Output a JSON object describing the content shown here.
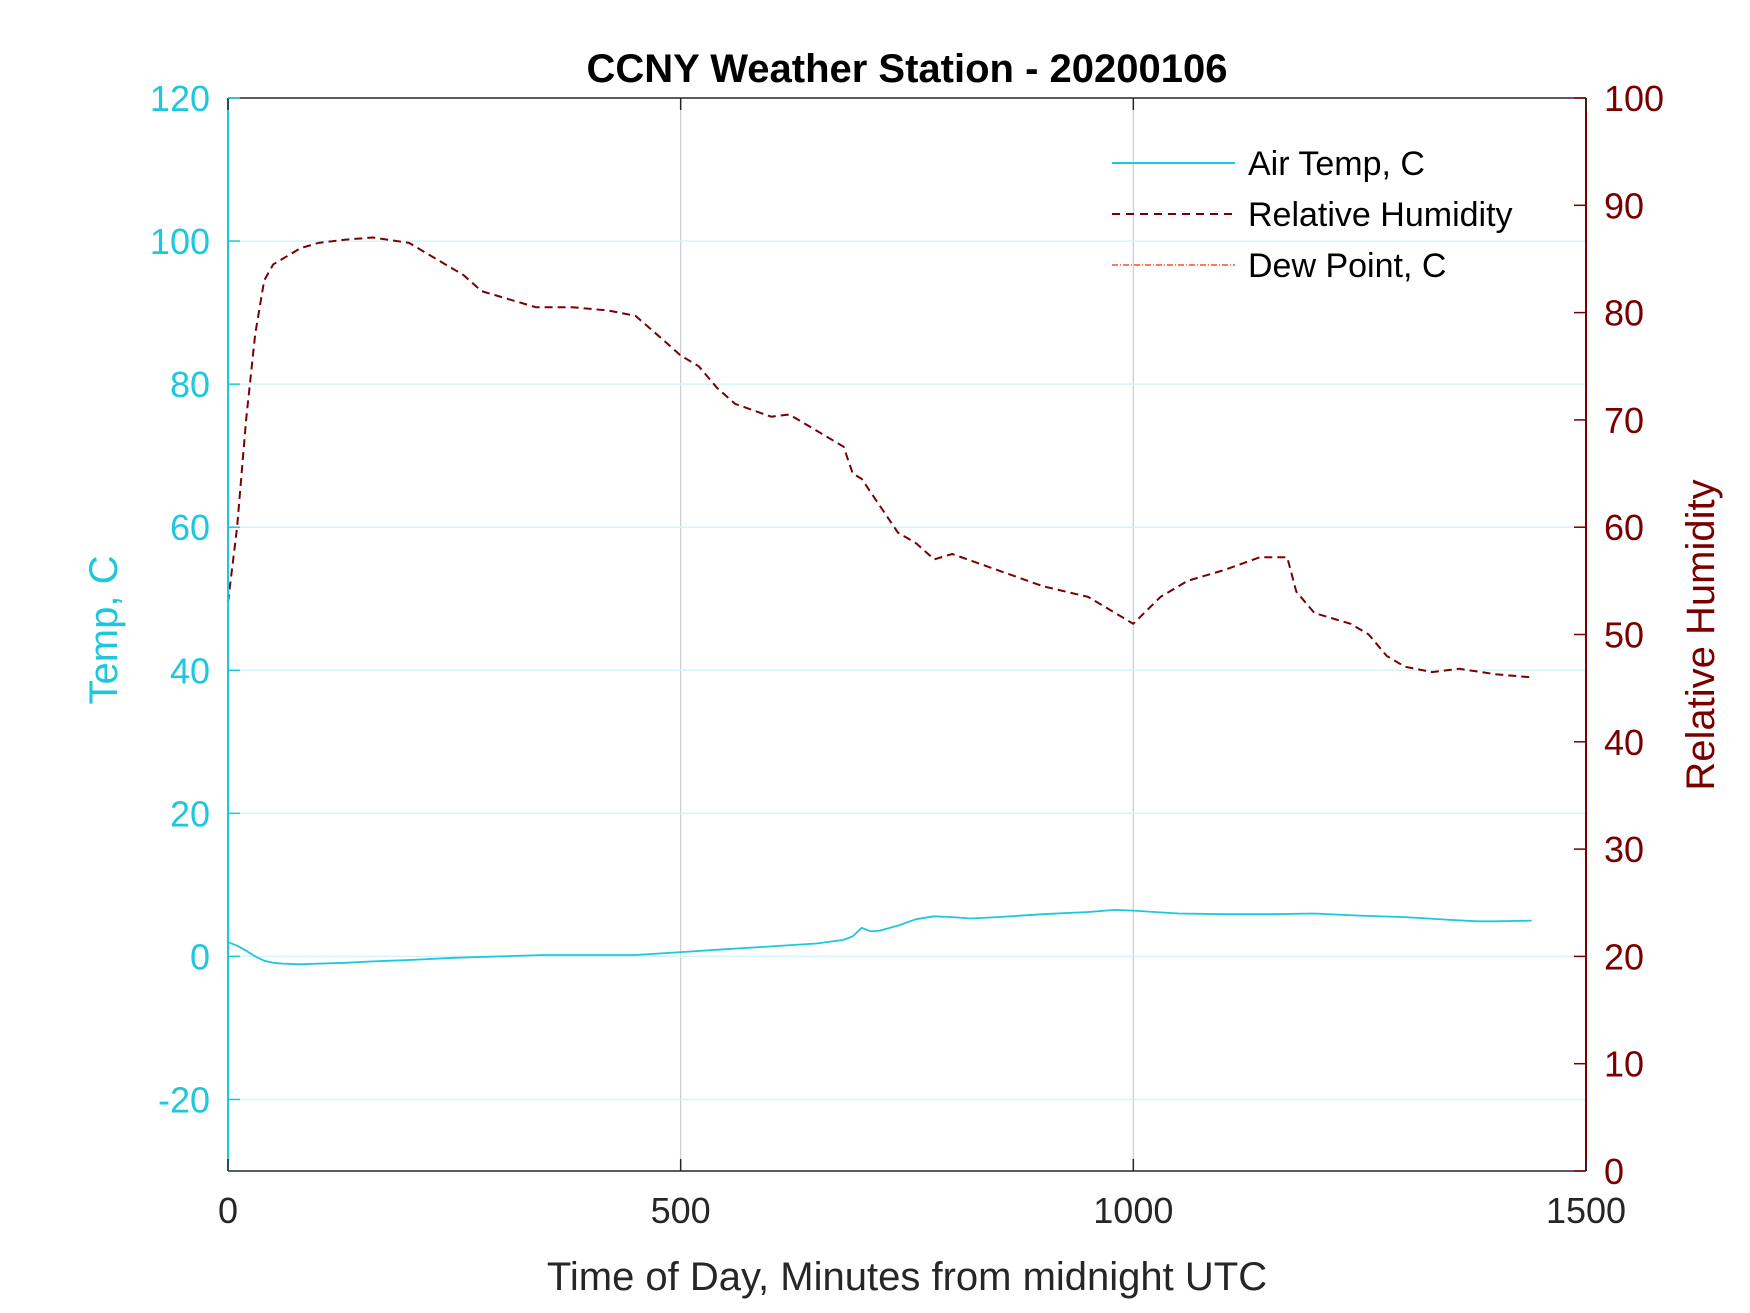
{
  "chart_data": {
    "type": "line",
    "title": "CCNY Weather Station - 20200106",
    "xlabel": "Time of Day, Minutes from midnight UTC",
    "ylabel_left": "Temp, C",
    "ylabel_right": "Relative Humidity",
    "xlim": [
      0,
      1500
    ],
    "ylim_left": [
      -30,
      120
    ],
    "ylim_right": [
      0,
      100
    ],
    "x_ticks": [
      0,
      500,
      1000,
      1500
    ],
    "x_tick_labels": [
      "0",
      "500",
      "1000",
      "1500"
    ],
    "y_left_ticks": [
      -20,
      0,
      20,
      40,
      60,
      80,
      100,
      120
    ],
    "y_left_tick_labels": [
      "-20",
      "0",
      "20",
      "40",
      "60",
      "80",
      "100",
      "120"
    ],
    "y_right_ticks": [
      0,
      10,
      20,
      30,
      40,
      50,
      60,
      70,
      80,
      90,
      100
    ],
    "y_right_tick_labels": [
      "0",
      "10",
      "20",
      "30",
      "40",
      "50",
      "60",
      "70",
      "80",
      "90",
      "100"
    ],
    "grid": true,
    "legend_position": "top-right",
    "colors": {
      "left_axis": "#1ec8dc",
      "right_axis": "#7a0000",
      "air_temp": "#1ec8dc",
      "rel_humidity": "#7a0000",
      "dew_point": "#ff4a2a",
      "grid_vertical": "#c8ccd4",
      "grid_horizontal": "#d6f4f8"
    },
    "series": [
      {
        "name": "Air Temp, C",
        "axis": "left",
        "style": "solid",
        "x": [
          0,
          10,
          20,
          30,
          40,
          50,
          60,
          80,
          100,
          130,
          160,
          200,
          250,
          300,
          350,
          400,
          450,
          500,
          550,
          600,
          650,
          680,
          690,
          700,
          710,
          720,
          740,
          760,
          780,
          800,
          820,
          850,
          900,
          950,
          980,
          1000,
          1050,
          1100,
          1150,
          1200,
          1250,
          1300,
          1350,
          1380,
          1400,
          1440
        ],
        "y": [
          2,
          1.5,
          0.8,
          0,
          -0.6,
          -0.9,
          -1,
          -1.1,
          -1,
          -0.9,
          -0.7,
          -0.5,
          -0.2,
          0,
          0.2,
          0.2,
          0.2,
          0.6,
          1.0,
          1.4,
          1.8,
          2.3,
          2.8,
          4.0,
          3.5,
          3.6,
          4.3,
          5.2,
          5.6,
          5.5,
          5.3,
          5.5,
          5.9,
          6.2,
          6.5,
          6.4,
          6.0,
          5.9,
          5.9,
          6.0,
          5.7,
          5.5,
          5.1,
          4.9,
          4.9,
          5.0
        ]
      },
      {
        "name": "Relative Humidity",
        "axis": "right",
        "style": "dashed",
        "x": [
          0,
          10,
          20,
          30,
          40,
          50,
          60,
          80,
          100,
          130,
          160,
          200,
          230,
          260,
          280,
          300,
          340,
          380,
          420,
          450,
          480,
          500,
          520,
          540,
          560,
          600,
          620,
          650,
          680,
          690,
          700,
          720,
          740,
          750,
          760,
          780,
          800,
          850,
          900,
          950,
          980,
          1000,
          1030,
          1060,
          1100,
          1140,
          1170,
          1180,
          1200,
          1240,
          1260,
          1280,
          1300,
          1330,
          1360,
          1400,
          1440
        ],
        "y": [
          53,
          60,
          70,
          78,
          83,
          84.5,
          85,
          86,
          86.5,
          86.8,
          87,
          86.5,
          85,
          83.5,
          82,
          81.5,
          80.5,
          80.5,
          80.2,
          79.7,
          77.5,
          76,
          75,
          73,
          71.5,
          70.3,
          70.5,
          69,
          67.5,
          65,
          64.5,
          62,
          59.5,
          59,
          58.5,
          57,
          57.5,
          56,
          54.5,
          53.5,
          52,
          51,
          53.5,
          55,
          56,
          57.2,
          57.2,
          54,
          52,
          51,
          50,
          48,
          47,
          46.5,
          46.8,
          46.3,
          46
        ]
      },
      {
        "name": "Dew Point, C",
        "axis": "left",
        "style": "dashdot",
        "x": [],
        "y": []
      }
    ]
  }
}
